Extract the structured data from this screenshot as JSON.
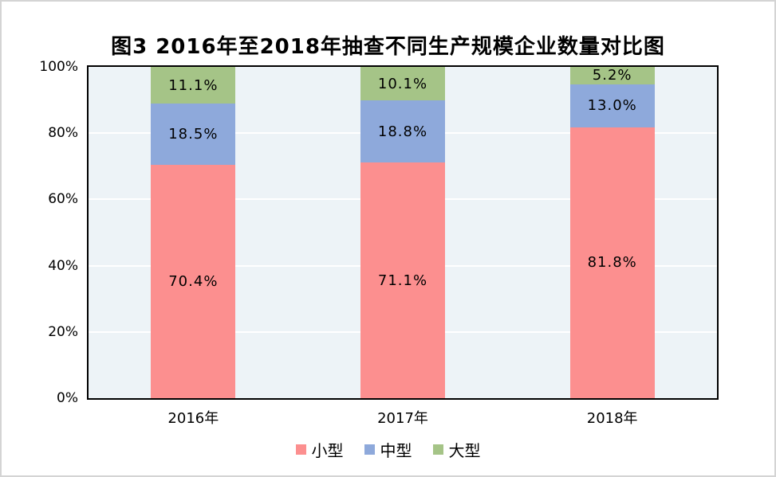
{
  "figure": {
    "background_color": "#FFFFFF",
    "outer_border_color": "#D4D4D4"
  },
  "chart_data": {
    "type": "bar",
    "subtype": "stacked-100-percent",
    "title": "图3  2016年至2018年抽查不同生产规模企业数量对比图",
    "categories": [
      "2016年",
      "2017年",
      "2018年"
    ],
    "series": [
      {
        "name": "小型",
        "color": "#FC8F8F",
        "values": [
          70.4,
          71.1,
          81.8
        ],
        "labels": [
          "70.4%",
          "71.1%",
          "81.8%"
        ]
      },
      {
        "name": "中型",
        "color": "#8EA9DB",
        "values": [
          18.5,
          18.8,
          13.0
        ],
        "labels": [
          "18.5%",
          "18.8%",
          "13.0%"
        ]
      },
      {
        "name": "大型",
        "color": "#A5C487",
        "values": [
          11.1,
          10.1,
          5.2
        ],
        "labels": [
          "11.1%",
          "10.1%",
          "5.2%"
        ]
      }
    ],
    "xlabel": "",
    "ylabel": "",
    "y_axis": {
      "tick_labels": [
        "0%",
        "20%",
        "40%",
        "60%",
        "80%",
        "100%"
      ],
      "tick_values": [
        0,
        20,
        40,
        60,
        80,
        100
      ],
      "ylim": [
        0,
        100
      ],
      "grid": true
    },
    "legend": {
      "position": "bottom",
      "entries": [
        "小型",
        "中型",
        "大型"
      ]
    },
    "plot_background_color": "#EDF3F7",
    "gridline_color": "#FFFFFF",
    "axis_border_color": "#000000",
    "label_text_color": "#000000"
  }
}
